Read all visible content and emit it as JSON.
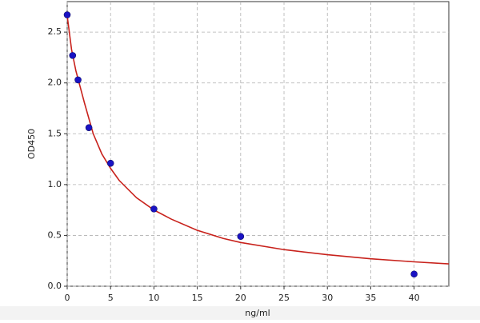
{
  "chart_data": {
    "type": "scatter",
    "x_label": "ng/ml",
    "y_label": "OD450",
    "xlim": [
      0,
      44
    ],
    "ylim": [
      0,
      2.8
    ],
    "xticks": [
      0,
      5,
      10,
      15,
      20,
      25,
      30,
      35,
      40
    ],
    "yticks": [
      {
        "value": 0,
        "label": "0.0"
      },
      0.5,
      {
        "value": 1,
        "label": "1.0"
      },
      1.5,
      {
        "value": 2,
        "label": "2.0"
      },
      2.5
    ],
    "grid": true,
    "series": [
      {
        "mode": "line",
        "color": "#c8221c",
        "x": [
          0,
          0.5,
          1,
          1.5,
          2,
          3,
          4,
          5,
          6,
          8,
          10,
          12,
          15,
          18,
          20,
          25,
          30,
          35,
          40,
          44
        ],
        "values": [
          2.66,
          2.33,
          2.12,
          1.96,
          1.8,
          1.5,
          1.3,
          1.16,
          1.04,
          0.87,
          0.75,
          0.66,
          0.55,
          0.47,
          0.43,
          0.36,
          0.31,
          0.27,
          0.24,
          0.22
        ]
      },
      {
        "mode": "markers",
        "color": "#1a12c4",
        "x": [
          0,
          0.625,
          1.25,
          2.5,
          5,
          10,
          20,
          40
        ],
        "values": [
          2.67,
          2.27,
          2.03,
          1.56,
          1.21,
          0.76,
          0.49,
          0.12
        ]
      }
    ]
  }
}
